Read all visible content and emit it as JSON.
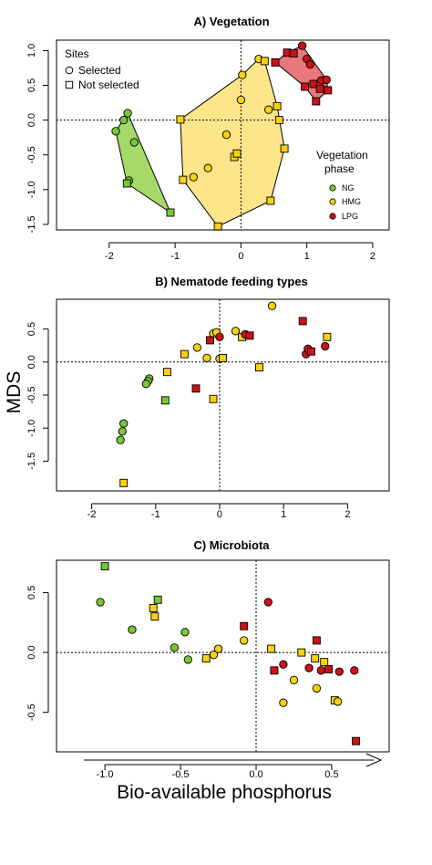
{
  "figure": {
    "ylabel": "MDS",
    "xlabel": "Bio-available phosphorus"
  },
  "colors": {
    "NG": "#77c832",
    "HMG": "#f7d210",
    "LPG": "#cc1218"
  },
  "hull_colors": {
    "NG": "#a6d96a",
    "HMG": "#fde68a",
    "LPG": "#e8787a"
  },
  "legend_sites": {
    "title": "Sites",
    "items": [
      {
        "label": "Selected",
        "shape": "circle"
      },
      {
        "label": "Not selected",
        "shape": "square"
      }
    ]
  },
  "legend_phase": {
    "title_line1": "Vegetation",
    "title_line2": "phase",
    "items": [
      {
        "label": "NG",
        "group": "NG"
      },
      {
        "label": "HMG",
        "group": "HMG"
      },
      {
        "label": "LPG",
        "group": "LPG"
      }
    ]
  },
  "chart_data": [
    {
      "type": "scatter",
      "title": "A) Vegetation",
      "xlim": [
        -2.8,
        2.25
      ],
      "ylim": [
        -1.58,
        1.15
      ],
      "xticks": [
        -2,
        -1,
        0,
        1,
        2
      ],
      "yticks": [
        -1.5,
        -1.0,
        -0.5,
        0.0,
        0.5,
        1.0
      ],
      "xtick_labels": [
        "-2",
        "-1",
        "0",
        "1",
        "2"
      ],
      "ytick_labels": [
        "-1.5",
        "-1.0",
        "-0.5",
        "0.0",
        "0.5",
        "1.0"
      ],
      "hulls": [
        {
          "group": "NG",
          "points": [
            [
              -1.9,
              -0.16
            ],
            [
              -1.72,
              0.1
            ],
            [
              -1.07,
              -1.33
            ],
            [
              -1.73,
              -0.91
            ]
          ]
        },
        {
          "group": "HMG",
          "points": [
            [
              -0.92,
              0.01
            ],
            [
              0.02,
              0.65
            ],
            [
              0.27,
              0.88
            ],
            [
              0.36,
              0.85
            ],
            [
              0.55,
              0.2
            ],
            [
              0.66,
              -0.41
            ],
            [
              0.45,
              -1.16
            ],
            [
              -0.35,
              -1.53
            ],
            [
              -0.88,
              -0.86
            ]
          ]
        },
        {
          "group": "LPG",
          "points": [
            [
              0.52,
              0.83
            ],
            [
              0.7,
              0.97
            ],
            [
              0.93,
              1.07
            ],
            [
              1.3,
              0.58
            ],
            [
              1.32,
              0.43
            ],
            [
              1.14,
              0.27
            ],
            [
              0.97,
              0.48
            ]
          ]
        }
      ],
      "points": [
        {
          "x": -1.9,
          "y": -0.16,
          "group": "NG",
          "shape": "circle"
        },
        {
          "x": -1.78,
          "y": 0.0,
          "group": "NG",
          "shape": "circle"
        },
        {
          "x": -1.72,
          "y": 0.1,
          "group": "NG",
          "shape": "circle"
        },
        {
          "x": -1.62,
          "y": -0.32,
          "group": "NG",
          "shape": "circle"
        },
        {
          "x": -1.7,
          "y": -0.87,
          "group": "NG",
          "shape": "circle"
        },
        {
          "x": -1.73,
          "y": -0.91,
          "group": "NG",
          "shape": "square"
        },
        {
          "x": -1.07,
          "y": -1.33,
          "group": "NG",
          "shape": "square"
        },
        {
          "x": -0.92,
          "y": 0.01,
          "group": "HMG",
          "shape": "square"
        },
        {
          "x": -0.88,
          "y": -0.86,
          "group": "HMG",
          "shape": "square"
        },
        {
          "x": -0.35,
          "y": -1.53,
          "group": "HMG",
          "shape": "square"
        },
        {
          "x": -0.72,
          "y": -0.82,
          "group": "HMG",
          "shape": "circle"
        },
        {
          "x": -0.5,
          "y": -0.69,
          "group": "HMG",
          "shape": "circle"
        },
        {
          "x": -0.22,
          "y": -0.21,
          "group": "HMG",
          "shape": "circle"
        },
        {
          "x": -0.1,
          "y": -0.53,
          "group": "HMG",
          "shape": "square"
        },
        {
          "x": -0.06,
          "y": -0.48,
          "group": "HMG",
          "shape": "square"
        },
        {
          "x": 0.0,
          "y": 0.29,
          "group": "HMG",
          "shape": "circle"
        },
        {
          "x": 0.02,
          "y": 0.65,
          "group": "HMG",
          "shape": "circle"
        },
        {
          "x": 0.27,
          "y": 0.88,
          "group": "HMG",
          "shape": "circle"
        },
        {
          "x": 0.36,
          "y": 0.85,
          "group": "HMG",
          "shape": "square"
        },
        {
          "x": 0.42,
          "y": 0.15,
          "group": "HMG",
          "shape": "circle"
        },
        {
          "x": 0.55,
          "y": 0.2,
          "group": "HMG",
          "shape": "square"
        },
        {
          "x": 0.58,
          "y": 0.0,
          "group": "HMG",
          "shape": "square"
        },
        {
          "x": 0.66,
          "y": -0.41,
          "group": "HMG",
          "shape": "square"
        },
        {
          "x": 0.45,
          "y": -1.16,
          "group": "HMG",
          "shape": "square"
        },
        {
          "x": 0.52,
          "y": 0.83,
          "group": "LPG",
          "shape": "square"
        },
        {
          "x": 0.7,
          "y": 0.97,
          "group": "LPG",
          "shape": "square"
        },
        {
          "x": 0.8,
          "y": 0.96,
          "group": "LPG",
          "shape": "square"
        },
        {
          "x": 0.93,
          "y": 1.07,
          "group": "LPG",
          "shape": "circle"
        },
        {
          "x": 1.0,
          "y": 0.88,
          "group": "LPG",
          "shape": "circle"
        },
        {
          "x": 1.05,
          "y": 0.8,
          "group": "LPG",
          "shape": "circle"
        },
        {
          "x": 1.22,
          "y": 0.57,
          "group": "LPG",
          "shape": "circle"
        },
        {
          "x": 1.3,
          "y": 0.58,
          "group": "LPG",
          "shape": "circle"
        },
        {
          "x": 1.1,
          "y": 0.52,
          "group": "LPG",
          "shape": "square"
        },
        {
          "x": 0.97,
          "y": 0.48,
          "group": "LPG",
          "shape": "square"
        },
        {
          "x": 1.2,
          "y": 0.45,
          "group": "LPG",
          "shape": "square"
        },
        {
          "x": 1.32,
          "y": 0.43,
          "group": "LPG",
          "shape": "square"
        },
        {
          "x": 1.14,
          "y": 0.27,
          "group": "LPG",
          "shape": "square"
        }
      ]
    },
    {
      "type": "scatter",
      "title": "B) Nematode feeding types",
      "xlim": [
        -2.55,
        2.65
      ],
      "ylim": [
        -1.95,
        0.95
      ],
      "xticks": [
        -2,
        -1,
        0,
        1,
        2
      ],
      "yticks": [
        -1.5,
        -1.0,
        -0.5,
        0.0,
        0.5
      ],
      "xtick_labels": [
        "-2",
        "-1",
        "0",
        "1",
        "2"
      ],
      "ytick_labels": [
        "-1.5",
        "-1.0",
        "-0.5",
        "0.0",
        "0.5"
      ],
      "points": [
        {
          "x": -1.5,
          "y": -0.93,
          "group": "NG",
          "shape": "circle"
        },
        {
          "x": -1.52,
          "y": -1.05,
          "group": "NG",
          "shape": "circle"
        },
        {
          "x": -1.55,
          "y": -1.18,
          "group": "NG",
          "shape": "circle"
        },
        {
          "x": -1.1,
          "y": -0.25,
          "group": "NG",
          "shape": "circle"
        },
        {
          "x": -1.12,
          "y": -0.29,
          "group": "NG",
          "shape": "circle"
        },
        {
          "x": -1.15,
          "y": -0.33,
          "group": "NG",
          "shape": "circle"
        },
        {
          "x": -0.85,
          "y": -0.58,
          "group": "NG",
          "shape": "square"
        },
        {
          "x": -1.5,
          "y": -1.83,
          "group": "HMG",
          "shape": "square"
        },
        {
          "x": -0.82,
          "y": -0.15,
          "group": "HMG",
          "shape": "square"
        },
        {
          "x": -0.55,
          "y": 0.12,
          "group": "HMG",
          "shape": "square"
        },
        {
          "x": -0.35,
          "y": 0.22,
          "group": "HMG",
          "shape": "circle"
        },
        {
          "x": -0.2,
          "y": 0.06,
          "group": "HMG",
          "shape": "circle"
        },
        {
          "x": -0.1,
          "y": 0.43,
          "group": "HMG",
          "shape": "circle"
        },
        {
          "x": -0.05,
          "y": 0.45,
          "group": "HMG",
          "shape": "circle"
        },
        {
          "x": 0.0,
          "y": 0.05,
          "group": "HMG",
          "shape": "circle"
        },
        {
          "x": 0.05,
          "y": 0.06,
          "group": "HMG",
          "shape": "square"
        },
        {
          "x": 0.25,
          "y": 0.47,
          "group": "HMG",
          "shape": "circle"
        },
        {
          "x": 0.35,
          "y": 0.38,
          "group": "HMG",
          "shape": "square"
        },
        {
          "x": -0.1,
          "y": -0.56,
          "group": "HMG",
          "shape": "square"
        },
        {
          "x": 0.62,
          "y": -0.08,
          "group": "HMG",
          "shape": "square"
        },
        {
          "x": 0.82,
          "y": 0.85,
          "group": "HMG",
          "shape": "circle"
        },
        {
          "x": 1.68,
          "y": 0.38,
          "group": "HMG",
          "shape": "square"
        },
        {
          "x": -0.37,
          "y": -0.4,
          "group": "LPG",
          "shape": "square"
        },
        {
          "x": -0.15,
          "y": 0.33,
          "group": "LPG",
          "shape": "square"
        },
        {
          "x": 0.0,
          "y": 0.38,
          "group": "LPG",
          "shape": "circle"
        },
        {
          "x": 0.4,
          "y": 0.42,
          "group": "LPG",
          "shape": "circle"
        },
        {
          "x": 0.47,
          "y": 0.4,
          "group": "LPG",
          "shape": "square"
        },
        {
          "x": 1.3,
          "y": 0.62,
          "group": "LPG",
          "shape": "square"
        },
        {
          "x": 1.35,
          "y": 0.12,
          "group": "LPG",
          "shape": "circle"
        },
        {
          "x": 1.38,
          "y": 0.2,
          "group": "LPG",
          "shape": "circle"
        },
        {
          "x": 1.43,
          "y": 0.16,
          "group": "LPG",
          "shape": "square"
        },
        {
          "x": 1.65,
          "y": 0.24,
          "group": "LPG",
          "shape": "circle"
        }
      ]
    },
    {
      "type": "scatter",
      "title": "C) Microbiota",
      "xlim": [
        -1.32,
        0.88
      ],
      "ylim": [
        -0.83,
        0.77
      ],
      "xticks": [
        -1.0,
        -0.5,
        0.0,
        0.5
      ],
      "yticks": [
        -0.5,
        0.0,
        0.5
      ],
      "xtick_labels": [
        "-1.0",
        "-0.5",
        "0.0",
        "0.5"
      ],
      "ytick_labels": [
        "-0.5",
        "0.0",
        "0.5"
      ],
      "points": [
        {
          "x": -1.03,
          "y": 0.42,
          "group": "NG",
          "shape": "circle"
        },
        {
          "x": -1.0,
          "y": 0.72,
          "group": "NG",
          "shape": "square"
        },
        {
          "x": -0.82,
          "y": 0.19,
          "group": "NG",
          "shape": "circle"
        },
        {
          "x": -0.65,
          "y": 0.44,
          "group": "NG",
          "shape": "square"
        },
        {
          "x": -0.54,
          "y": 0.04,
          "group": "NG",
          "shape": "circle"
        },
        {
          "x": -0.47,
          "y": 0.17,
          "group": "NG",
          "shape": "circle"
        },
        {
          "x": -0.45,
          "y": -0.06,
          "group": "NG",
          "shape": "circle"
        },
        {
          "x": -0.68,
          "y": 0.37,
          "group": "HMG",
          "shape": "square"
        },
        {
          "x": -0.67,
          "y": 0.3,
          "group": "HMG",
          "shape": "square"
        },
        {
          "x": -0.33,
          "y": -0.05,
          "group": "HMG",
          "shape": "square"
        },
        {
          "x": -0.28,
          "y": -0.02,
          "group": "HMG",
          "shape": "circle"
        },
        {
          "x": -0.25,
          "y": 0.03,
          "group": "HMG",
          "shape": "circle"
        },
        {
          "x": -0.08,
          "y": 0.1,
          "group": "HMG",
          "shape": "circle"
        },
        {
          "x": 0.1,
          "y": 0.03,
          "group": "HMG",
          "shape": "square"
        },
        {
          "x": 0.18,
          "y": -0.42,
          "group": "HMG",
          "shape": "circle"
        },
        {
          "x": 0.25,
          "y": -0.23,
          "group": "HMG",
          "shape": "circle"
        },
        {
          "x": 0.3,
          "y": 0.0,
          "group": "HMG",
          "shape": "square"
        },
        {
          "x": 0.39,
          "y": -0.05,
          "group": "HMG",
          "shape": "square"
        },
        {
          "x": 0.4,
          "y": -0.3,
          "group": "HMG",
          "shape": "circle"
        },
        {
          "x": 0.45,
          "y": -0.08,
          "group": "HMG",
          "shape": "square"
        },
        {
          "x": 0.52,
          "y": -0.4,
          "group": "HMG",
          "shape": "square"
        },
        {
          "x": 0.54,
          "y": -0.41,
          "group": "HMG",
          "shape": "circle"
        },
        {
          "x": -0.08,
          "y": 0.22,
          "group": "LPG",
          "shape": "square"
        },
        {
          "x": 0.08,
          "y": 0.42,
          "group": "LPG",
          "shape": "circle"
        },
        {
          "x": 0.12,
          "y": -0.15,
          "group": "LPG",
          "shape": "square"
        },
        {
          "x": 0.18,
          "y": -0.1,
          "group": "LPG",
          "shape": "circle"
        },
        {
          "x": 0.35,
          "y": -0.13,
          "group": "LPG",
          "shape": "circle"
        },
        {
          "x": 0.4,
          "y": 0.1,
          "group": "LPG",
          "shape": "square"
        },
        {
          "x": 0.43,
          "y": -0.15,
          "group": "LPG",
          "shape": "circle"
        },
        {
          "x": 0.48,
          "y": -0.14,
          "group": "LPG",
          "shape": "square"
        },
        {
          "x": 0.55,
          "y": -0.16,
          "group": "LPG",
          "shape": "circle"
        },
        {
          "x": 0.65,
          "y": -0.15,
          "group": "LPG",
          "shape": "circle"
        },
        {
          "x": 0.66,
          "y": -0.74,
          "group": "LPG",
          "shape": "square"
        }
      ]
    }
  ]
}
